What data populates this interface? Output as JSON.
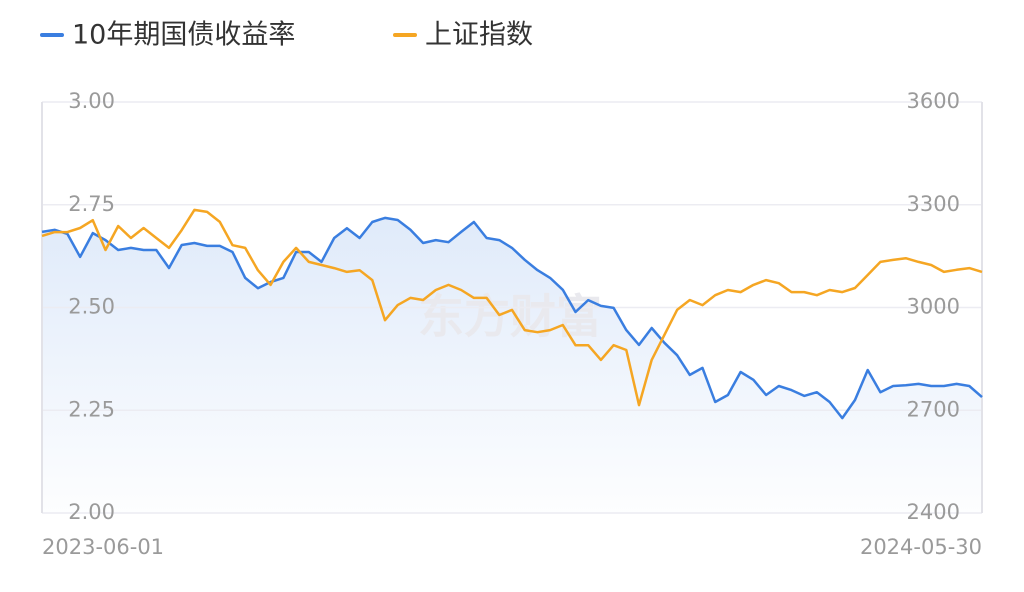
{
  "chart_data": {
    "type": "line",
    "watermark": "东方财富",
    "categories": [
      "2023-06-01",
      null,
      null,
      null,
      null,
      null,
      null,
      null,
      null,
      null,
      null,
      null,
      null,
      null,
      null,
      null,
      null,
      null,
      null,
      null,
      null,
      null,
      null,
      null,
      null,
      null,
      null,
      null,
      null,
      null,
      null,
      null,
      null,
      null,
      null,
      null,
      null,
      null,
      null,
      null,
      null,
      null,
      null,
      null,
      null,
      null,
      null,
      null,
      null,
      null,
      null,
      null,
      null,
      null,
      null,
      null,
      null,
      null,
      null,
      null,
      null,
      null,
      null,
      null,
      null,
      null,
      null,
      null,
      null,
      null,
      null,
      null,
      null,
      null,
      "2024-05-30"
    ],
    "series": [
      {
        "name": "10年期国债收益率",
        "color": "#3a7ee0",
        "axis": "y",
        "values": [
          2.684,
          2.689,
          2.679,
          2.623,
          2.681,
          2.664,
          2.64,
          2.645,
          2.64,
          2.64,
          2.596,
          2.652,
          2.657,
          2.65,
          2.65,
          2.635,
          2.572,
          2.547,
          2.562,
          2.572,
          2.635,
          2.635,
          2.611,
          2.669,
          2.693,
          2.669,
          2.708,
          2.718,
          2.713,
          2.689,
          2.657,
          2.664,
          2.659,
          2.684,
          2.708,
          2.669,
          2.664,
          2.645,
          2.616,
          2.591,
          2.572,
          2.543,
          2.489,
          2.518,
          2.504,
          2.499,
          2.445,
          2.409,
          2.45,
          2.414,
          2.384,
          2.336,
          2.353,
          2.27,
          2.287,
          2.343,
          2.324,
          2.287,
          2.309,
          2.299,
          2.285,
          2.294,
          2.27,
          2.231,
          2.275,
          2.348,
          2.294,
          2.309,
          2.311,
          2.314,
          2.309,
          2.309,
          2.314,
          2.309,
          2.282
        ]
      },
      {
        "name": "上证指数",
        "color": "#f5a623",
        "axis": "y2",
        "values": [
          3209,
          3220,
          3220,
          3232,
          3255,
          3168,
          3238,
          3203,
          3232,
          3203,
          3174,
          3226,
          3285,
          3279,
          3250,
          3182,
          3174,
          3109,
          3066,
          3133,
          3174,
          3133,
          3124,
          3115,
          3104,
          3109,
          3080,
          2963,
          3007,
          3028,
          3022,
          3051,
          3066,
          3051,
          3028,
          3028,
          2978,
          2993,
          2934,
          2928,
          2934,
          2949,
          2890,
          2890,
          2847,
          2890,
          2876,
          2715,
          2847,
          2920,
          2993,
          3022,
          3007,
          3036,
          3051,
          3045,
          3066,
          3080,
          3071,
          3045,
          3045,
          3036,
          3051,
          3045,
          3057,
          3095,
          3133,
          3139,
          3144,
          3133,
          3124,
          3104,
          3110,
          3115,
          3104
        ]
      }
    ],
    "ylim": [
      2.0,
      3.0
    ],
    "yticks": [
      {
        "value": 2.0,
        "label": "2.00"
      },
      2.25,
      {
        "value": 2.5,
        "label": "2.50"
      },
      2.75,
      {
        "value": 3.0,
        "label": "3.00"
      }
    ],
    "y2lim": [
      2400,
      3600
    ],
    "y2ticks": [
      2400,
      2700,
      3000,
      3300,
      3600
    ],
    "grid": true
  }
}
